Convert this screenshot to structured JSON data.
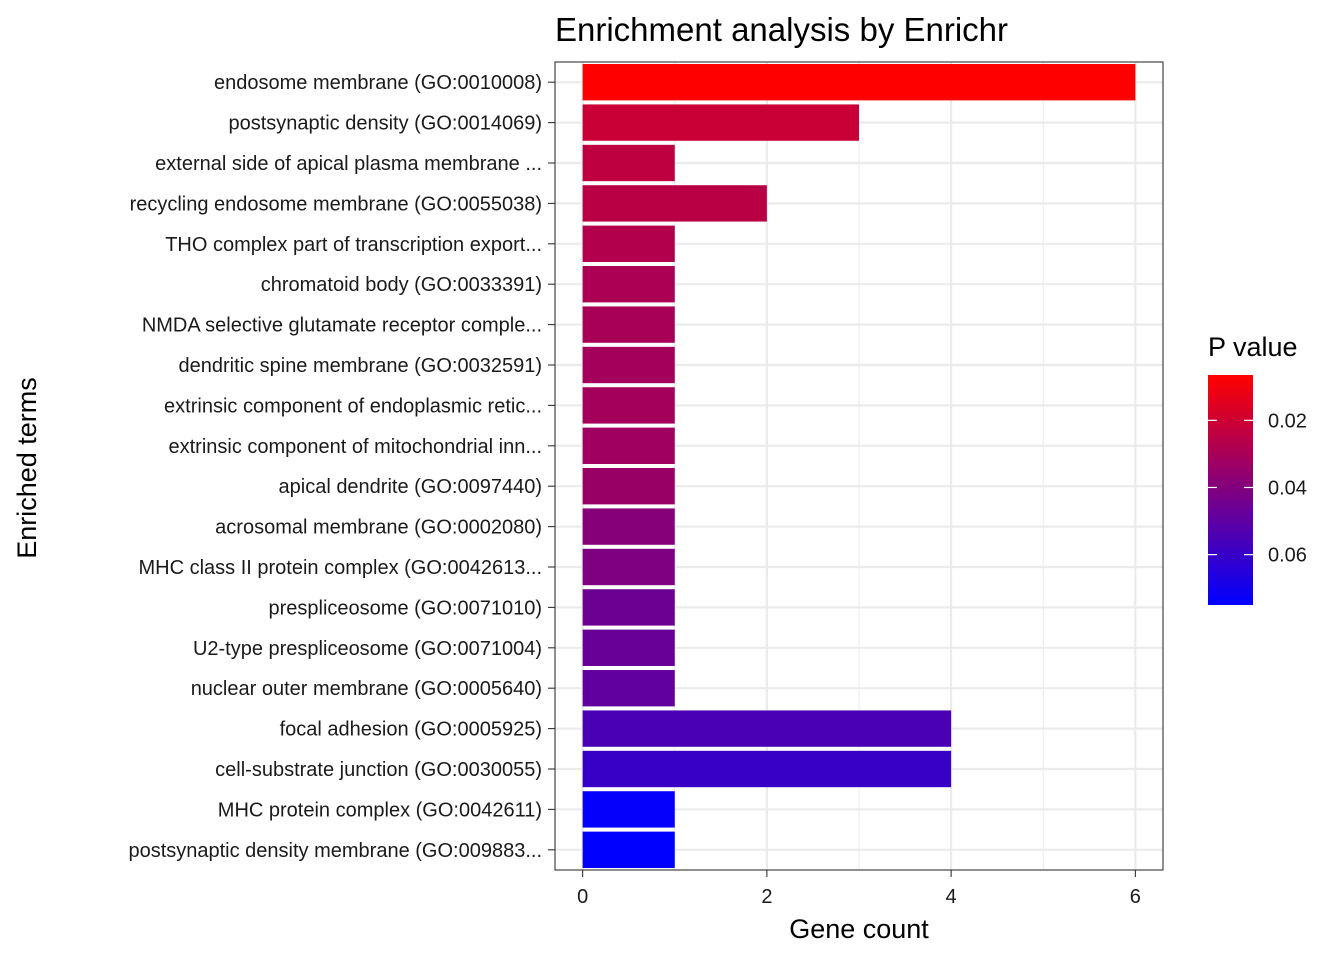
{
  "chart_data": {
    "type": "bar",
    "orientation": "horizontal",
    "title": "Enrichment analysis by Enrichr",
    "xlabel": "Gene count",
    "ylabel": "Enriched terms",
    "xlim": [
      -0.3,
      6.3
    ],
    "xticks": [
      0,
      2,
      4,
      6
    ],
    "grid": true,
    "legend_position": "right",
    "categories": [
      "endosome membrane (GO:0010008)",
      "postsynaptic density (GO:0014069)",
      "external side of apical plasma membrane ...",
      "recycling endosome membrane (GO:0055038)",
      "THO complex part of transcription export...",
      "chromatoid body (GO:0033391)",
      "NMDA selective glutamate receptor comple...",
      "dendritic spine membrane (GO:0032591)",
      "extrinsic component of endoplasmic retic...",
      "extrinsic component of mitochondrial inn...",
      "apical dendrite (GO:0097440)",
      "acrosomal membrane (GO:0002080)",
      "MHC class II protein complex (GO:0042613...",
      "prespliceosome (GO:0071010)",
      "U2-type prespliceosome (GO:0071004)",
      "nuclear outer membrane (GO:0005640)",
      "focal adhesion (GO:0005925)",
      "cell-substrate junction (GO:0030055)",
      "MHC protein complex (GO:0042611)",
      "postsynaptic density membrane (GO:009883..."
    ],
    "values": [
      6,
      3,
      1,
      2,
      1,
      1,
      1,
      1,
      1,
      1,
      1,
      1,
      1,
      1,
      1,
      1,
      4,
      4,
      1,
      1
    ],
    "p_values": [
      0.0065,
      0.021,
      0.024,
      0.025,
      0.027,
      0.029,
      0.03,
      0.031,
      0.031,
      0.032,
      0.034,
      0.039,
      0.041,
      0.046,
      0.047,
      0.049,
      0.055,
      0.06,
      0.074,
      0.075
    ],
    "colorbar": {
      "title": "P value",
      "low_color": "#FF0000",
      "high_color": "#0000FF",
      "range": [
        0.0065,
        0.075
      ],
      "ticks": [
        0.02,
        0.04,
        0.06
      ],
      "tick_labels": [
        "0.02",
        "0.04",
        "0.06"
      ]
    }
  }
}
